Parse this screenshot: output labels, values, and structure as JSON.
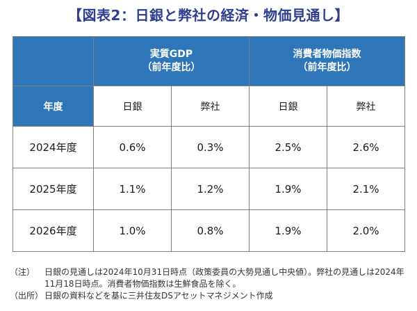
{
  "title": "【図表2：日銀と弊社の経済・物価見通し】",
  "table": {
    "groups": [
      {
        "line1": "実質GDP",
        "line2": "（前年度比）"
      },
      {
        "line1": "消費者物価指数",
        "line2": "（前年度比）"
      }
    ],
    "year_header": "年度",
    "sub_headers": [
      "日銀",
      "弊社",
      "日銀",
      "弊社"
    ],
    "rows": [
      {
        "year": "2024年度",
        "values": [
          "0.6%",
          "0.3%",
          "2.5%",
          "2.6%"
        ]
      },
      {
        "year": "2025年度",
        "values": [
          "1.1%",
          "1.2%",
          "1.9%",
          "2.1%"
        ]
      },
      {
        "year": "2026年度",
        "values": [
          "1.0%",
          "0.8%",
          "1.9%",
          "2.0%"
        ]
      }
    ]
  },
  "notes": [
    {
      "tag": "（注）",
      "text": "日銀の見通しは2024年10月31日時点（政策委員の大勢見通し中央値）。弊社の見通しは2024年11月18日時点。消費者物価指数は生鮮食品を除く。"
    },
    {
      "tag": "（出所）",
      "text": "日銀の資料などを基に三井住友DSアセットマネジメント作成"
    }
  ],
  "colors": {
    "header_bg": "#2e76b8",
    "title": "#2f3f8f",
    "border": "#7f7f7f"
  }
}
